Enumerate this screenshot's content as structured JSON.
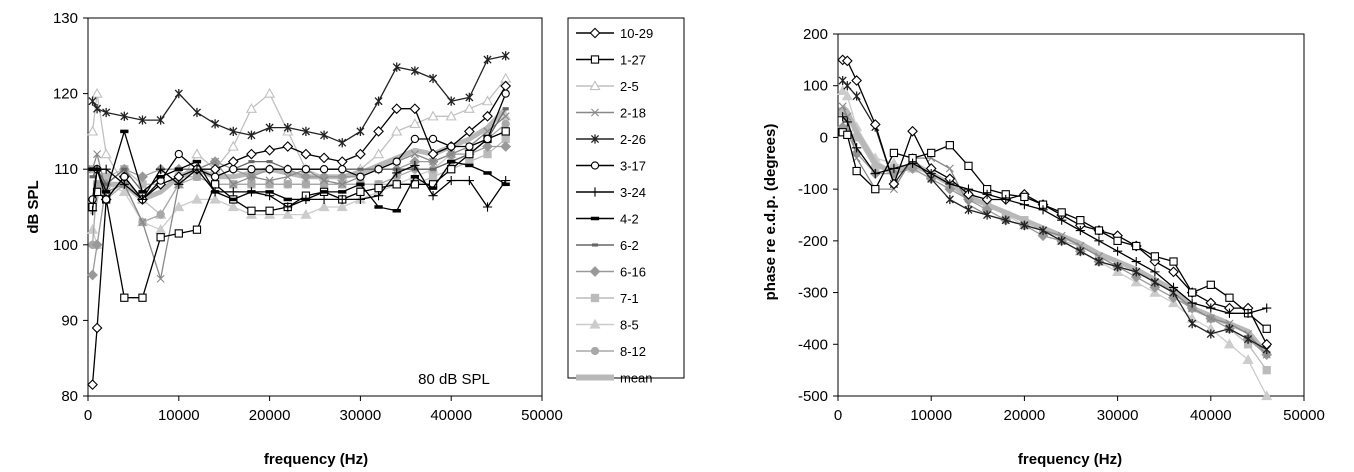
{
  "chart_data": [
    {
      "type": "line",
      "xlabel": "frequency (Hz)",
      "ylabel": "dB SPL",
      "xlim": [
        0,
        50000
      ],
      "ylim": [
        80,
        130
      ],
      "xticks": [
        0,
        10000,
        20000,
        30000,
        40000,
        50000
      ],
      "yticks": [
        80,
        90,
        100,
        110,
        120,
        130
      ],
      "grid": false,
      "legend_position": "right",
      "annotation": "80 dB SPL",
      "x": [
        500,
        1000,
        2000,
        4000,
        6000,
        8000,
        10000,
        12000,
        14000,
        16000,
        18000,
        20000,
        22000,
        24000,
        26000,
        28000,
        30000,
        32000,
        34000,
        36000,
        38000,
        40000,
        42000,
        44000,
        46000
      ],
      "series": [
        {
          "name": "10-29",
          "color": "#000000",
          "marker": "diamond",
          "values": [
            81.5,
            89,
            106,
            109,
            106,
            108,
            109,
            110,
            110,
            111,
            112,
            112.5,
            113,
            112,
            111.5,
            111,
            112,
            115,
            118,
            118,
            112,
            113,
            115,
            117,
            121
          ]
        },
        {
          "name": "1-27",
          "color": "#000000",
          "marker": "square",
          "values": [
            105,
            107,
            106,
            93,
            93,
            101,
            101.5,
            102,
            108,
            106,
            104.5,
            104.5,
            105,
            106.5,
            107,
            106,
            107,
            107.5,
            108,
            108,
            108,
            110,
            112,
            114,
            115
          ]
        },
        {
          "name": "2-5",
          "color": "#c0c0c0",
          "marker": "triangle",
          "values": [
            115,
            120,
            112,
            108,
            106,
            104,
            108,
            112,
            110,
            113,
            118,
            120,
            115,
            110,
            109,
            109,
            110,
            112,
            115,
            116,
            117,
            117,
            118,
            119,
            122
          ]
        },
        {
          "name": "2-18",
          "color": "#888888",
          "marker": "x",
          "values": [
            110,
            112,
            107,
            108,
            103,
            95.5,
            108,
            110,
            111,
            108,
            109,
            108.5,
            109,
            110,
            108.5,
            108,
            109,
            110,
            111,
            112,
            111,
            112,
            113,
            115,
            117
          ]
        },
        {
          "name": "2-26",
          "color": "#222222",
          "marker": "star",
          "values": [
            119,
            118,
            117.5,
            117,
            116.5,
            116.5,
            120,
            117.5,
            116,
            115,
            114.5,
            115.5,
            115.5,
            115,
            114.5,
            113.5,
            115,
            119,
            123.5,
            123,
            122,
            119,
            119.5,
            124.5,
            125
          ]
        },
        {
          "name": "3-17",
          "color": "#000000",
          "marker": "circle",
          "values": [
            106,
            110,
            106,
            109,
            106,
            108.5,
            112,
            110,
            109,
            110,
            110,
            110,
            110,
            110,
            110,
            110,
            109,
            110,
            111,
            114,
            114,
            113,
            113,
            114,
            120
          ]
        },
        {
          "name": "3-24",
          "color": "#000000",
          "marker": "plus",
          "values": [
            104.5,
            110,
            110,
            108,
            106,
            110,
            108,
            110,
            107,
            107,
            107,
            106.5,
            105,
            106,
            106,
            106,
            106,
            106.5,
            109.5,
            110.5,
            106.5,
            108.5,
            108.5,
            105,
            108.5
          ]
        },
        {
          "name": "4-2",
          "color": "#000000",
          "marker": "dash",
          "values": [
            110,
            110,
            107,
            115,
            107,
            109,
            110,
            111,
            107,
            106,
            107,
            107,
            106,
            106,
            107,
            107,
            108,
            105,
            104.5,
            109,
            107.5,
            111,
            110.5,
            109.5,
            108
          ]
        },
        {
          "name": "6-2",
          "color": "#666666",
          "marker": "smalldash",
          "values": [
            109,
            110,
            108,
            110,
            107,
            109,
            110,
            110,
            109,
            110,
            111,
            111,
            110,
            110,
            110,
            110,
            110,
            110,
            110,
            110,
            110,
            111,
            112,
            114,
            118
          ]
        },
        {
          "name": "6-16",
          "color": "#999999",
          "marker": "diamondfill",
          "values": [
            96,
            100,
            108,
            110,
            109,
            110,
            110,
            110,
            111,
            110,
            109,
            110,
            110,
            109,
            109,
            109,
            109,
            110,
            110,
            111,
            111,
            112,
            112,
            113,
            113
          ]
        },
        {
          "name": "7-1",
          "color": "#bbbbbb",
          "marker": "squarefill",
          "values": [
            110,
            108,
            109,
            110,
            108,
            108,
            109,
            109,
            108,
            108,
            108,
            108,
            108,
            108,
            108,
            108,
            108,
            108,
            108,
            108,
            109,
            110,
            111,
            112,
            114
          ]
        },
        {
          "name": "8-5",
          "color": "#cccccc",
          "marker": "trianglefill",
          "values": [
            102,
            100,
            108,
            107,
            103,
            102,
            105,
            106,
            106,
            105,
            104,
            104,
            104,
            104,
            105,
            105,
            106,
            107,
            108,
            109,
            110,
            112,
            113,
            115,
            117
          ]
        },
        {
          "name": "8-12",
          "color": "#a8a8a8",
          "marker": "circlefill",
          "values": [
            100,
            108,
            106,
            108,
            103,
            104,
            108,
            109,
            108,
            108,
            108,
            108,
            108,
            108,
            108,
            108,
            108,
            108,
            109,
            110,
            110,
            111,
            112,
            114,
            116
          ]
        },
        {
          "name": "mean",
          "color": "#b8b8b8",
          "marker": "thick",
          "values": [
            104,
            107,
            108,
            108,
            106,
            107,
            109,
            110,
            109,
            109,
            109.5,
            110,
            109.5,
            109,
            109,
            109,
            109.5,
            110.5,
            111.5,
            112.5,
            112,
            113,
            114,
            115.5,
            118
          ]
        }
      ]
    },
    {
      "type": "line",
      "xlabel": "frequency (Hz)",
      "ylabel": "phase re e.d.p. (degrees)",
      "xlim": [
        0,
        50000
      ],
      "ylim": [
        -500,
        200
      ],
      "xticks": [
        0,
        10000,
        20000,
        30000,
        40000,
        50000
      ],
      "yticks": [
        -500,
        -400,
        -300,
        -200,
        -100,
        0,
        100,
        200
      ],
      "grid": false,
      "x": [
        500,
        1000,
        2000,
        4000,
        6000,
        8000,
        10000,
        12000,
        14000,
        16000,
        18000,
        20000,
        22000,
        24000,
        26000,
        28000,
        30000,
        32000,
        34000,
        36000,
        38000,
        40000,
        42000,
        44000,
        46000
      ],
      "series": [
        {
          "name": "10-29",
          "color": "#000000",
          "marker": "diamond",
          "values": [
            150,
            148,
            110,
            25,
            -90,
            12,
            -60,
            -80,
            -110,
            -120,
            -120,
            -110,
            -130,
            -150,
            -170,
            -180,
            -190,
            -210,
            -240,
            -260,
            -300,
            -320,
            -330,
            -330,
            -400
          ]
        },
        {
          "name": "1-27",
          "color": "#000000",
          "marker": "square",
          "values": [
            10,
            5,
            -65,
            -100,
            -30,
            -40,
            -30,
            -15,
            -55,
            -100,
            -110,
            -115,
            -130,
            -145,
            -160,
            -180,
            -200,
            -210,
            -230,
            -240,
            -300,
            -285,
            -310,
            -340,
            -370
          ]
        },
        {
          "name": "2-18",
          "color": "#888888",
          "marker": "x",
          "values": [
            60,
            40,
            -40,
            -100,
            -100,
            -40,
            -40,
            -60,
            -130,
            -150,
            -160,
            -170,
            -180,
            -190,
            -210,
            -230,
            -250,
            -260,
            -280,
            -300,
            -330,
            -350,
            -360,
            -380,
            -420
          ]
        },
        {
          "name": "2-26",
          "color": "#222222",
          "marker": "star",
          "values": [
            110,
            100,
            80,
            20,
            -90,
            -40,
            -80,
            -120,
            -140,
            -150,
            -160,
            -170,
            -180,
            -200,
            -220,
            -240,
            -250,
            -260,
            -280,
            -300,
            -360,
            -380,
            -370,
            -390,
            -410
          ]
        },
        {
          "name": "3-24",
          "color": "#000000",
          "marker": "plus",
          "values": [
            40,
            30,
            -20,
            -70,
            -60,
            -50,
            -70,
            -90,
            -100,
            -110,
            -120,
            -130,
            -140,
            -160,
            -180,
            -200,
            -220,
            -240,
            -260,
            -290,
            -320,
            -330,
            -340,
            -340,
            -330
          ]
        },
        {
          "name": "6-16",
          "color": "#999999",
          "marker": "diamondfill",
          "values": [
            20,
            10,
            -30,
            -70,
            -70,
            -60,
            -80,
            -100,
            -120,
            -140,
            -160,
            -170,
            -190,
            -200,
            -220,
            -240,
            -250,
            -270,
            -290,
            -310,
            -330,
            -350,
            -370,
            -390,
            -420
          ]
        },
        {
          "name": "7-1",
          "color": "#bbbbbb",
          "marker": "squarefill",
          "values": [
            50,
            40,
            0,
            -60,
            -60,
            -50,
            -70,
            -90,
            -110,
            -130,
            -150,
            -160,
            -180,
            -200,
            -210,
            -230,
            -250,
            -260,
            -280,
            -300,
            -330,
            -350,
            -370,
            -400,
            -450
          ]
        },
        {
          "name": "8-5",
          "color": "#cccccc",
          "marker": "trianglefill",
          "values": [
            90,
            80,
            20,
            -40,
            -50,
            -60,
            -70,
            -90,
            -110,
            -130,
            -150,
            -170,
            -180,
            -200,
            -220,
            -240,
            -260,
            -280,
            -300,
            -320,
            -350,
            -370,
            -400,
            -430,
            -500
          ]
        },
        {
          "name": "mean",
          "color": "#b8b8b8",
          "marker": "thick",
          "values": [
            60,
            50,
            10,
            -50,
            -70,
            -50,
            -70,
            -90,
            -115,
            -130,
            -145,
            -160,
            -175,
            -190,
            -205,
            -225,
            -240,
            -255,
            -275,
            -295,
            -330,
            -345,
            -360,
            -375,
            -420
          ]
        }
      ]
    }
  ]
}
